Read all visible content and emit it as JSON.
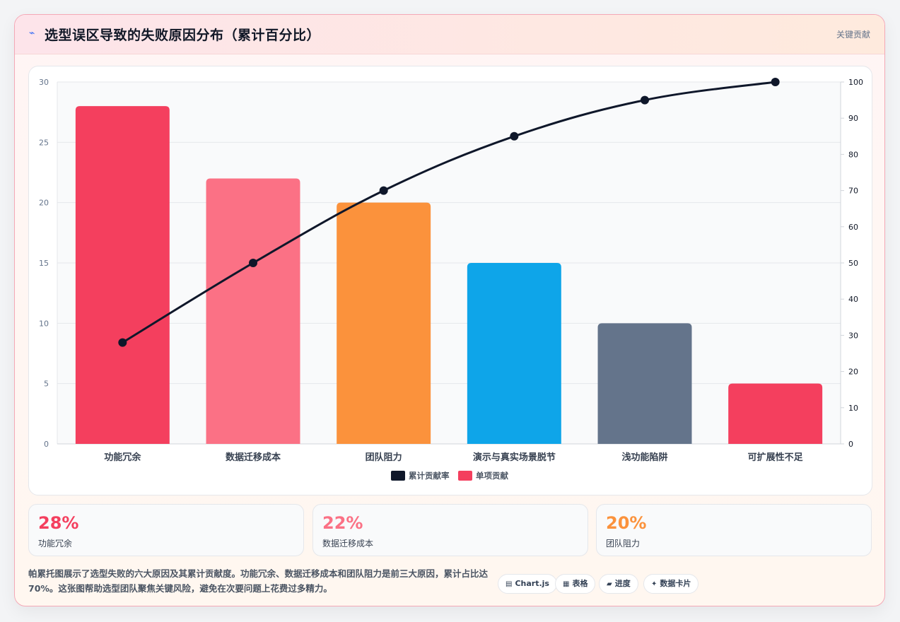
{
  "header": {
    "icon": "lightning-icon",
    "title": "选型误区导致的失败原因分布（累计百分比）",
    "tag": "关键贡献"
  },
  "chart_data": {
    "type": "bar",
    "categories": [
      "功能冗余",
      "数据迁移成本",
      "团队阻力",
      "演示与真实场景脱节",
      "浅功能陷阱",
      "可扩展性不足"
    ],
    "series": [
      {
        "name": "单项贡献",
        "kind": "bar",
        "axis": "left",
        "values": [
          28,
          22,
          20,
          15,
          10,
          5
        ],
        "colors": [
          "#f43f5e",
          "#fb7185",
          "#fb923c",
          "#0ea5e9",
          "#64748b",
          "#f43f5e"
        ]
      },
      {
        "name": "累计贡献率",
        "kind": "line",
        "axis": "right",
        "values": [
          28,
          50,
          70,
          85,
          95,
          100
        ],
        "color": "#0f172a"
      }
    ],
    "ylim": [
      0,
      30
    ],
    "yticks": [
      0,
      5,
      10,
      15,
      20,
      25,
      30
    ],
    "y2lim": [
      0,
      100
    ],
    "y2ticks": [
      0,
      10,
      20,
      30,
      40,
      50,
      60,
      70,
      80,
      90,
      100
    ],
    "legend": [
      {
        "label": "累计贡献率",
        "color": "#0f172a"
      },
      {
        "label": "单项贡献",
        "color": "#f43f5e"
      }
    ],
    "legend_position": "bottom",
    "grid": true
  },
  "stats": [
    {
      "value": "28%",
      "label": "功能冗余",
      "color": "#f43f5e"
    },
    {
      "value": "22%",
      "label": "数据迁移成本",
      "color": "#fb7185"
    },
    {
      "value": "20%",
      "label": "团队阻力",
      "color": "#fb923c"
    }
  ],
  "description": "帕累托图展示了选型失败的六大原因及其累计贡献度。功能冗余、数据迁移成本和团队阻力是前三大原因，累计占比达70%。这张图帮助选型团队聚焦关键风险，避免在次要问题上花费过多精力。",
  "pills": [
    {
      "icon": "chart-icon",
      "glyph": "▤",
      "label": "Chart.js"
    },
    {
      "icon": "table-icon",
      "glyph": "▦",
      "label": "表格"
    },
    {
      "icon": "progress-icon",
      "glyph": "▰",
      "label": "进度"
    },
    {
      "icon": "sparkle-icon",
      "glyph": "✦",
      "label": "数据卡片"
    }
  ]
}
